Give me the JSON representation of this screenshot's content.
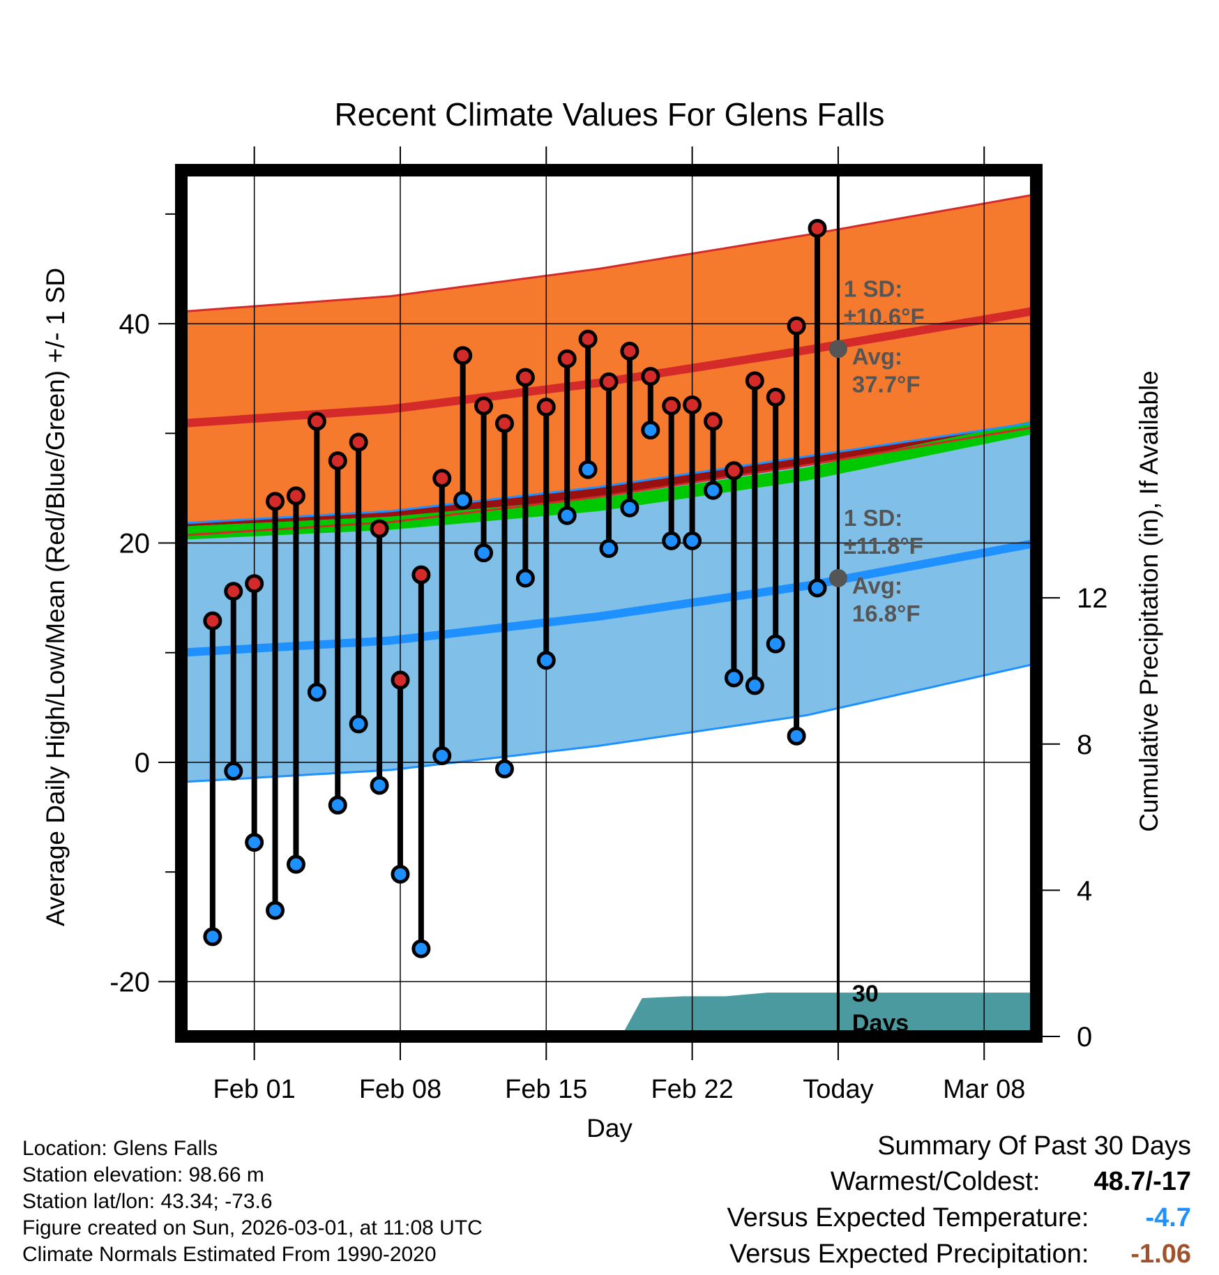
{
  "chart_data": {
    "type": "line",
    "title": "Recent Climate Values For Glens Falls",
    "xlabel": "Day",
    "ylabel": "Average Daily High/Low/Mean (Red/Blue/Green) +/- 1 SD",
    "y2label": "Cumulative Precipitation (in), If Available",
    "ylim": [
      -25,
      54
    ],
    "y_ticks": [
      -20,
      0,
      20,
      40
    ],
    "y2lim": [
      0,
      23.7
    ],
    "y2_ticks": [
      0,
      4,
      8,
      12
    ],
    "xlim_day_index": [
      -2.5,
      38.5
    ],
    "x_ticks": [
      {
        "day": 1,
        "label": "Feb 01"
      },
      {
        "day": 8,
        "label": "Feb 08"
      },
      {
        "day": 15,
        "label": "Feb 15"
      },
      {
        "day": 22,
        "label": "Feb 22"
      },
      {
        "day": 29,
        "label": "Today"
      },
      {
        "day": 36,
        "label": "Mar 08"
      }
    ],
    "days": [
      -1,
      0,
      1,
      2,
      3,
      4,
      5,
      6,
      7,
      8,
      9,
      10,
      11,
      12,
      13,
      14,
      15,
      16,
      17,
      18,
      19,
      20,
      21,
      22,
      23,
      24,
      25,
      26,
      27,
      28
    ],
    "daily_high": [
      12.9,
      15.6,
      16.3,
      23.8,
      24.3,
      31.1,
      27.5,
      29.2,
      21.3,
      7.5,
      17.1,
      25.9,
      37.1,
      32.5,
      30.9,
      35.1,
      32.4,
      36.8,
      38.6,
      34.7,
      37.5,
      35.2,
      32.5,
      32.6,
      31.1,
      26.6,
      34.8,
      33.3,
      39.8,
      48.7
    ],
    "daily_low": [
      -15.9,
      -0.8,
      -7.3,
      -13.5,
      -9.3,
      6.4,
      -3.9,
      3.5,
      -2.1,
      -10.2,
      -17.0,
      0.6,
      23.9,
      19.1,
      -0.6,
      16.8,
      9.3,
      22.5,
      26.7,
      19.5,
      23.2,
      30.3,
      20.2,
      20.2,
      24.8,
      7.7,
      7.0,
      10.8,
      2.4,
      15.9
    ],
    "normal_high_mean": {
      "days": [
        -2.5,
        7.5,
        17.5,
        27.5,
        38.5
      ],
      "values": [
        30.9,
        32.2,
        34.6,
        37.6,
        41.2
      ]
    },
    "normal_high_sd": {
      "days": [
        -2.5,
        7.5,
        17.5,
        27.5,
        38.5
      ],
      "values": [
        10.2,
        10.3,
        10.4,
        10.5,
        10.6
      ]
    },
    "normal_low_mean": {
      "days": [
        -2.5,
        7.5,
        17.5,
        27.5,
        38.5
      ],
      "values": [
        10.0,
        11.1,
        13.3,
        16.1,
        20.0
      ]
    },
    "normal_low_sd": {
      "days": [
        -2.5,
        7.5,
        17.5,
        27.5,
        38.5
      ],
      "values": [
        11.8,
        11.8,
        11.8,
        11.8,
        11.0
      ]
    },
    "normal_mean_band": {
      "days": [
        -2.5,
        7.5,
        17.5,
        27.5,
        38.5
      ],
      "values": [
        20.9,
        21.8,
        23.5,
        26.3,
        30.6
      ]
    },
    "precip_cumulative": {
      "days": [
        18.6,
        19.6,
        21.6,
        22.6,
        23.6,
        25.6,
        38.5
      ],
      "values": [
        0.0,
        1.05,
        1.1,
        1.1,
        1.1,
        1.2,
        1.2
      ]
    },
    "annotations": {
      "high": {
        "day": 29,
        "avg": 37.7,
        "sd_text": "1 SD:",
        "sd_value": "±10.6°F",
        "avg_label": "Avg:",
        "avg_text": "37.7°F"
      },
      "low": {
        "day": 29,
        "avg": 16.8,
        "sd_text": "1 SD:",
        "sd_value": "±11.8°F",
        "avg_label": "Avg:",
        "avg_text": "16.8°F"
      },
      "window": "30 Days"
    },
    "colors": {
      "high_band": "#f57a2e",
      "high_line": "#d42a2a",
      "low_band": "#80c0e8",
      "low_line": "#1e90ff",
      "mean_band": "#00c800",
      "overlap": "#9a1010",
      "precip": "#4a9aa0",
      "annotation": "#555555"
    }
  },
  "info": {
    "location": "Location: Glens Falls",
    "elevation": "Station elevation: 98.66 m",
    "latlon": "Station lat/lon: 43.34; -73.6",
    "created": "Figure created on Sun, 2026-03-01, at 11:08 UTC",
    "normals": "Climate Normals Estimated From 1990-2020"
  },
  "summary": {
    "title": "Summary Of Past 30 Days",
    "warmest_label": "Warmest/Coldest:",
    "warmest_value": "48.7/-17",
    "temp_label": "Versus Expected Temperature:",
    "temp_value": "-4.7",
    "temp_color": "#1e90ff",
    "precip_label": "Versus Expected Precipitation:",
    "precip_value": "-1.06",
    "precip_color": "#a0522d"
  }
}
